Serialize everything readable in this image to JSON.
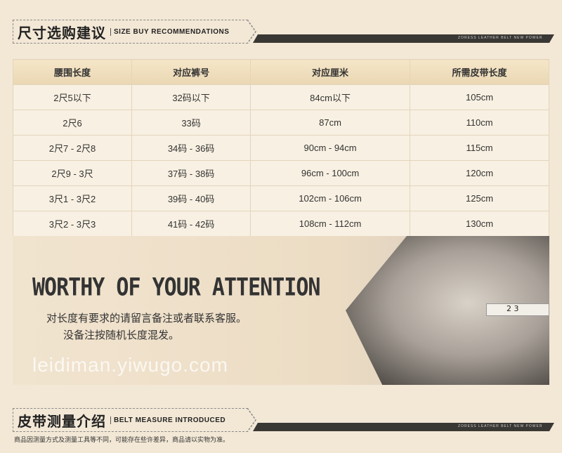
{
  "size_section": {
    "title_cn": "尺寸选购建议",
    "title_en": "SIZE BUY RECOMMENDATIONS",
    "bar_text": "ZORESS LEATHER BELT NEW POWER"
  },
  "table": {
    "headers": [
      "腰围长度",
      "对应裤号",
      "对应厘米",
      "所需皮带长度"
    ],
    "rows": [
      [
        "2尺5以下",
        "32码以下",
        "84cm以下",
        "105cm"
      ],
      [
        "2尺6",
        "33码",
        "87cm",
        "110cm"
      ],
      [
        "2尺7 - 2尺8",
        "34码 - 36码",
        "90cm - 94cm",
        "115cm"
      ],
      [
        "2尺9 - 3尺",
        "37码 - 38码",
        "96cm - 100cm",
        "120cm"
      ],
      [
        "3尺1 - 3尺2",
        "39码 - 40码",
        "102cm - 106cm",
        "125cm"
      ],
      [
        "3尺2 - 3尺3",
        "41码 - 42码",
        "108cm - 112cm",
        "130cm"
      ]
    ]
  },
  "watermark": "leidiman.yiwugo.com",
  "attention": {
    "title": "WORTHY OF YOUR ATTENTION",
    "line1": "对长度有要求的请留言备注或者联系客服。",
    "line2": "没备注按随机长度混发。",
    "tape_text": "2 3"
  },
  "measure_section": {
    "title_cn": "皮带测量介绍",
    "title_en": "BELT MEASURE INTRODUCED",
    "bar_text": "ZORESS LEATHER BELT NEW POWER",
    "note": "商品因测量方式及测量工具等不同，可能存在些许差异，商品请以实物为准。"
  }
}
